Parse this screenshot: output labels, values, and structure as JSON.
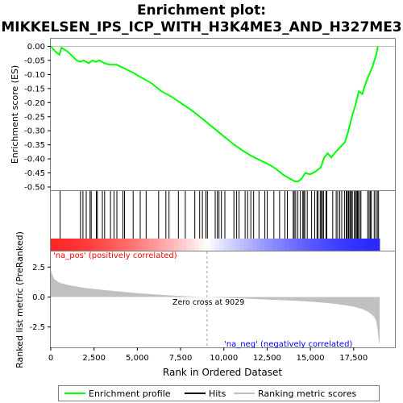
{
  "chart_data": {
    "type": "line",
    "title_line1": "Enrichment plot:",
    "title_line2": "MIKKELSEN_IPS_ICP_WITH_H3K4ME3_AND_H327ME3",
    "top_panel": {
      "ylabel": "Enrichment score (ES)",
      "ylim": [
        -0.5,
        0.0
      ],
      "yticks": [
        "0.00",
        "-0.05",
        "-0.10",
        "-0.15",
        "-0.20",
        "-0.25",
        "-0.30",
        "-0.35",
        "-0.40",
        "-0.45",
        "-0.50"
      ],
      "series_name": "Enrichment profile",
      "series_color": "#00ff00",
      "es_x": [
        0,
        300,
        500,
        620,
        1000,
        1500,
        1700,
        1900,
        2200,
        2400,
        2600,
        2800,
        3100,
        3400,
        3800,
        4300,
        4800,
        5200,
        5800,
        6400,
        7000,
        7600,
        8200,
        8800,
        9400,
        10000,
        10600,
        11200,
        11600,
        12100,
        12600,
        13000,
        13400,
        13800,
        14100,
        14300,
        14500,
        14700,
        15000,
        15300,
        15600,
        15800,
        16000,
        16200,
        16400,
        16700,
        17000,
        17200,
        17400,
        17600,
        17800,
        18000,
        18200,
        18400,
        18600,
        18800,
        18900
      ],
      "es_y": [
        0.0,
        -0.02,
        -0.03,
        -0.005,
        -0.02,
        -0.05,
        -0.055,
        -0.05,
        -0.06,
        -0.05,
        -0.055,
        -0.05,
        -0.06,
        -0.065,
        -0.065,
        -0.08,
        -0.095,
        -0.11,
        -0.13,
        -0.16,
        -0.18,
        -0.205,
        -0.23,
        -0.26,
        -0.29,
        -0.32,
        -0.35,
        -0.375,
        -0.39,
        -0.405,
        -0.42,
        -0.435,
        -0.455,
        -0.47,
        -0.48,
        -0.48,
        -0.47,
        -0.45,
        -0.455,
        -0.445,
        -0.43,
        -0.395,
        -0.38,
        -0.395,
        -0.38,
        -0.36,
        -0.34,
        -0.3,
        -0.25,
        -0.21,
        -0.16,
        -0.17,
        -0.13,
        -0.1,
        -0.07,
        -0.03,
        0.0
      ],
      "color": "#00ff00"
    },
    "hits": {
      "positions": [
        540,
        1720,
        1860,
        2050,
        2270,
        2340,
        2630,
        2690,
        2980,
        3110,
        3450,
        3650,
        3820,
        4170,
        4260,
        4760,
        5170,
        5510,
        6230,
        6650,
        6830,
        7370,
        7770,
        8320,
        8600,
        8760,
        8960,
        9050,
        9500,
        9620,
        9720,
        9860,
        10060,
        10580,
        10740,
        10880,
        11230,
        11370,
        11560,
        11720,
        12030,
        12370,
        12510,
        12890,
        13220,
        13530,
        13670,
        14010,
        14070,
        14150,
        14280,
        14420,
        14560,
        14620,
        14680,
        14820,
        15070,
        15250,
        15380,
        15440,
        15570,
        15630,
        15700,
        15760,
        15900,
        15950,
        16290,
        16490,
        16580,
        16700,
        16810,
        16970,
        17070,
        17110,
        17190,
        17230,
        17300,
        17370,
        17420,
        17540,
        17610,
        17660,
        17720,
        17760,
        17850,
        17920,
        18310,
        18390,
        18460,
        18520,
        18690,
        18780,
        18870,
        18940
      ]
    },
    "bar_legend": {
      "pos_label": "'na_pos' (positively correlated)",
      "neg_label": "'na_neg' (negatively correlated)",
      "pos_color": "#ff0000",
      "neg_color": "#0000ff"
    },
    "bottom_panel": {
      "ylabel": "Ranked list metric (PreRanked)",
      "ylim": [
        -4.2,
        3.8
      ],
      "yticks": [
        "2.5",
        "0.0",
        "-2.5"
      ],
      "zero_cross_label": "Zero cross at 9029",
      "zero_cross": 9029,
      "metric_x": [
        0,
        50,
        200,
        500,
        1000,
        2000,
        3000,
        4000,
        5000,
        6000,
        7000,
        8000,
        9029,
        10000,
        11000,
        12000,
        13000,
        14000,
        15000,
        16000,
        16500,
        17000,
        17500,
        18000,
        18300,
        18500,
        18700,
        18800,
        18850,
        18900,
        18950,
        19000
      ],
      "metric_y": [
        2.3,
        2.0,
        1.5,
        1.2,
        1.0,
        0.75,
        0.6,
        0.45,
        0.32,
        0.22,
        0.13,
        0.05,
        0.0,
        -0.06,
        -0.12,
        -0.18,
        -0.24,
        -0.3,
        -0.38,
        -0.5,
        -0.58,
        -0.68,
        -0.8,
        -1.0,
        -1.2,
        -1.4,
        -1.7,
        -2.0,
        -2.4,
        -3.0,
        -3.6,
        -4.0
      ],
      "fill_color": "#c0c0c0",
      "xlabel": "Rank in Ordered Dataset",
      "xticks": [
        "0",
        "2,500",
        "5,000",
        "7,500",
        "10,000",
        "12,500",
        "15,000",
        "17,500"
      ],
      "xtick_values": [
        0,
        2500,
        5000,
        7500,
        10000,
        12500,
        15000,
        17500
      ],
      "xlim": [
        0,
        19000
      ]
    },
    "legend": {
      "items": [
        "Enrichment profile",
        "Hits",
        "Ranking metric scores"
      ],
      "colors": [
        "#00ff00",
        "#000000",
        "#c0c0c0"
      ]
    }
  }
}
